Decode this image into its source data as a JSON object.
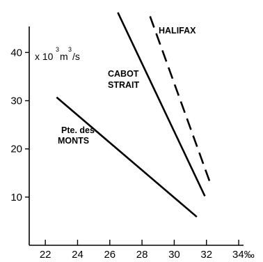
{
  "chart_data": {
    "type": "line",
    "title": "",
    "xlabel": "",
    "ylabel": "",
    "y_unit": "x 10³ m³/s",
    "x_unit_suffix": "‰",
    "xlim": [
      21.0,
      34.3
    ],
    "ylim": [
      0,
      48
    ],
    "x_ticks": [
      22,
      24,
      26,
      28,
      30,
      32,
      34
    ],
    "x_tick_labels": [
      "22",
      "24",
      "26",
      "28",
      "30",
      "32",
      "34‰"
    ],
    "y_ticks": [
      10,
      20,
      30,
      40
    ],
    "y_tick_labels": [
      "10",
      "20",
      "30",
      "40"
    ],
    "grid": false,
    "series": [
      {
        "name": "HALIFAX",
        "style": "dashed",
        "x": [
          28.5,
          32.3
        ],
        "y": [
          47.5,
          12.3
        ]
      },
      {
        "name": "CABOT STRAIT",
        "style": "solid",
        "x": [
          26.5,
          31.9
        ],
        "y": [
          48.3,
          10.2
        ]
      },
      {
        "name": "Pte. des MONTS",
        "style": "solid",
        "x": [
          22.7,
          31.4
        ],
        "y": [
          30.7,
          5.9
        ]
      }
    ],
    "labels": [
      {
        "text": "HALIFAX",
        "series": 0
      },
      {
        "text": "CABOT",
        "series": 1
      },
      {
        "text": "STRAIT",
        "series": 1
      },
      {
        "text": "Pte. des",
        "series": 2
      },
      {
        "text": "MONTS",
        "series": 2
      }
    ]
  }
}
